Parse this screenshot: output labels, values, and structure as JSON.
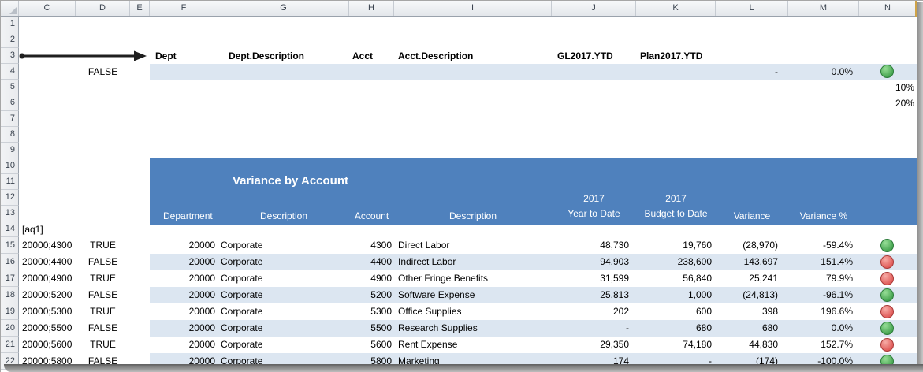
{
  "sheet": {
    "column_headers": [
      "C",
      "D",
      "E",
      "F",
      "G",
      "H",
      "I",
      "J",
      "K",
      "L",
      "M",
      "N"
    ],
    "row_headers": [
      "1",
      "2",
      "3",
      "4",
      "5",
      "6",
      "7",
      "8",
      "9",
      "10",
      "11",
      "12",
      "13",
      "14",
      "15",
      "16",
      "17",
      "18",
      "19",
      "20",
      "21",
      "22"
    ]
  },
  "setup": {
    "field_labels": [
      "Dept",
      "Dept.Description",
      "Acct",
      "Acct.Description",
      "GL2017.YTD",
      "Plan2017.YTD"
    ],
    "row4": {
      "flag": "FALSE",
      "variance": "-",
      "variance_pct": "0.0%",
      "indicator": "green"
    },
    "row5_value": "10%",
    "row6_value": "20%",
    "row14_marker": "[aq1]"
  },
  "report": {
    "title": "Variance by Account",
    "headers": {
      "department": "Department",
      "dept_description": "Description",
      "account": "Account",
      "acct_description": "Description",
      "ytd_line1": "2017",
      "ytd_line2": "Year to Date",
      "budget_line1": "2017",
      "budget_line2": "Budget to Date",
      "variance": "Variance",
      "variance_pct": "Variance %"
    },
    "rows": [
      {
        "key": "20000;4300",
        "flag": "TRUE",
        "dept": "20000",
        "dept_desc": "Corporate",
        "acct": "4300",
        "acct_desc": "Direct Labor",
        "ytd": "48,730",
        "budget": "19,760",
        "variance": "(28,970)",
        "variance_pct": "-59.4%",
        "indicator": "green"
      },
      {
        "key": "20000;4400",
        "flag": "FALSE",
        "dept": "20000",
        "dept_desc": "Corporate",
        "acct": "4400",
        "acct_desc": "Indirect Labor",
        "ytd": "94,903",
        "budget": "238,600",
        "variance": "143,697",
        "variance_pct": "151.4%",
        "indicator": "red"
      },
      {
        "key": "20000;4900",
        "flag": "TRUE",
        "dept": "20000",
        "dept_desc": "Corporate",
        "acct": "4900",
        "acct_desc": "Other Fringe Benefits",
        "ytd": "31,599",
        "budget": "56,840",
        "variance": "25,241",
        "variance_pct": "79.9%",
        "indicator": "red"
      },
      {
        "key": "20000;5200",
        "flag": "FALSE",
        "dept": "20000",
        "dept_desc": "Corporate",
        "acct": "5200",
        "acct_desc": "Software Expense",
        "ytd": "25,813",
        "budget": "1,000",
        "variance": "(24,813)",
        "variance_pct": "-96.1%",
        "indicator": "green"
      },
      {
        "key": "20000;5300",
        "flag": "TRUE",
        "dept": "20000",
        "dept_desc": "Corporate",
        "acct": "5300",
        "acct_desc": "Office Supplies",
        "ytd": "202",
        "budget": "600",
        "variance": "398",
        "variance_pct": "196.6%",
        "indicator": "red"
      },
      {
        "key": "20000;5500",
        "flag": "FALSE",
        "dept": "20000",
        "dept_desc": "Corporate",
        "acct": "5500",
        "acct_desc": "Research Supplies",
        "ytd": "-",
        "budget": "680",
        "variance": "680",
        "variance_pct": "0.0%",
        "indicator": "green"
      },
      {
        "key": "20000;5600",
        "flag": "TRUE",
        "dept": "20000",
        "dept_desc": "Corporate",
        "acct": "5600",
        "acct_desc": "Rent Expense",
        "ytd": "29,350",
        "budget": "74,180",
        "variance": "44,830",
        "variance_pct": "152.7%",
        "indicator": "red"
      },
      {
        "key": "20000;5800",
        "flag": "FALSE",
        "dept": "20000",
        "dept_desc": "Corporate",
        "acct": "5800",
        "acct_desc": "Marketing",
        "ytd": "174",
        "budget": "-",
        "variance": "(174)",
        "variance_pct": "-100.0%",
        "indicator": "green"
      }
    ]
  },
  "colors": {
    "report_header_blue": "#4f81bd",
    "row_band_blue": "#dce6f1",
    "indicator_green": "#44a34f",
    "indicator_red": "#e05a58"
  }
}
